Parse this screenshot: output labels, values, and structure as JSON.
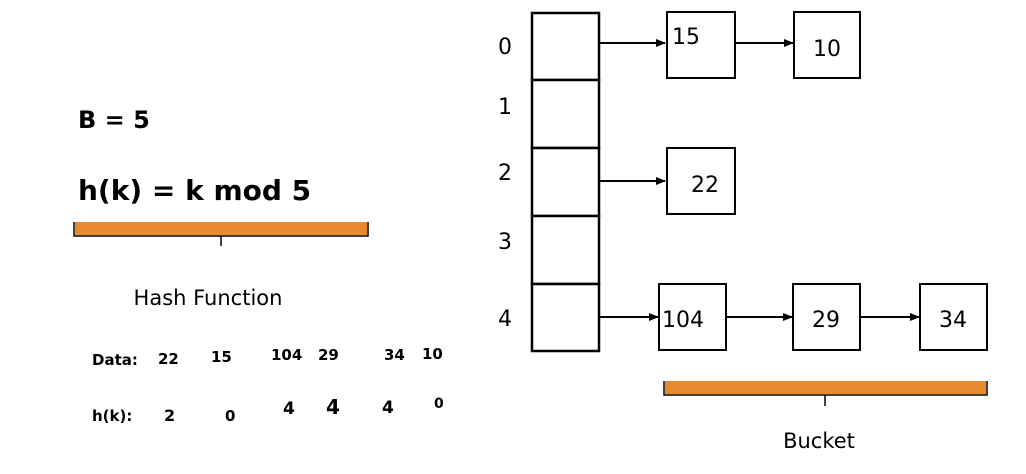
{
  "equations": {
    "b_value": "B = 5",
    "hash_function": "h(k) = k mod 5"
  },
  "labels": {
    "hash_function": "Hash Function",
    "bucket": "Bucket"
  },
  "colors": {
    "brace": "#e8892f",
    "stroke": "#000000"
  },
  "table": {
    "indices": [
      "0",
      "1",
      "2",
      "3",
      "4"
    ]
  },
  "buckets": [
    {
      "index": "0",
      "values": [
        "15",
        "10"
      ]
    },
    {
      "index": "2",
      "values": [
        "22"
      ]
    },
    {
      "index": "4",
      "values": [
        "104",
        "29",
        "34"
      ]
    }
  ],
  "handwritten": {
    "data_label": "Data:",
    "data_values": [
      "22",
      "15",
      "104",
      "29",
      "34",
      "10"
    ],
    "hash_label": "h(k):",
    "hash_values": [
      "2",
      "0",
      "4",
      "4",
      "4",
      "0"
    ]
  }
}
